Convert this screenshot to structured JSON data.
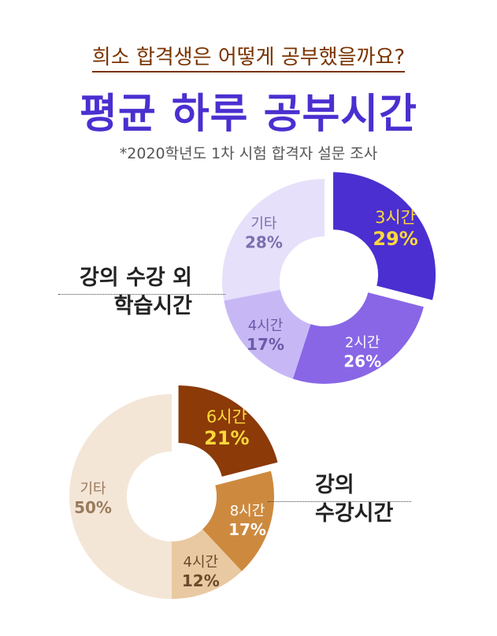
{
  "header": {
    "subtitle": "희소 합격생은 어떻게 공부했을까요?",
    "title": "평균 하루 공부시간",
    "note": "*2020학년도 1차 시험 합격자 설문 조사"
  },
  "chart_data": [
    {
      "type": "pie",
      "title": "강의 수강 외 학습시간",
      "categories": [
        "3시간",
        "2시간",
        "4시간",
        "기타"
      ],
      "values": [
        29,
        26,
        17,
        28
      ],
      "unit": "%",
      "colors": [
        "#4b2fd0",
        "#8866e6",
        "#c7b8f5",
        "#e6e0fb"
      ],
      "label_colors": [
        "#ffd93b",
        "#ffffff",
        "#6b5aa8",
        "#7c6fae"
      ]
    },
    {
      "type": "pie",
      "title": "강의 수강시간",
      "categories": [
        "6시간",
        "8시간",
        "4시간",
        "기타"
      ],
      "values": [
        21,
        17,
        12,
        50
      ],
      "unit": "%",
      "colors": [
        "#8b3a08",
        "#cd8a3f",
        "#e9c9a1",
        "#f4e6d7"
      ],
      "label_colors": [
        "#ffd93b",
        "#ffffff",
        "#6a4a2c",
        "#9a7a5c"
      ]
    }
  ],
  "labels": {
    "chart1_line1": "강의 수강 외",
    "chart1_line2": "학습시간",
    "chart2_line1": "강의",
    "chart2_line2": "수강시간"
  }
}
